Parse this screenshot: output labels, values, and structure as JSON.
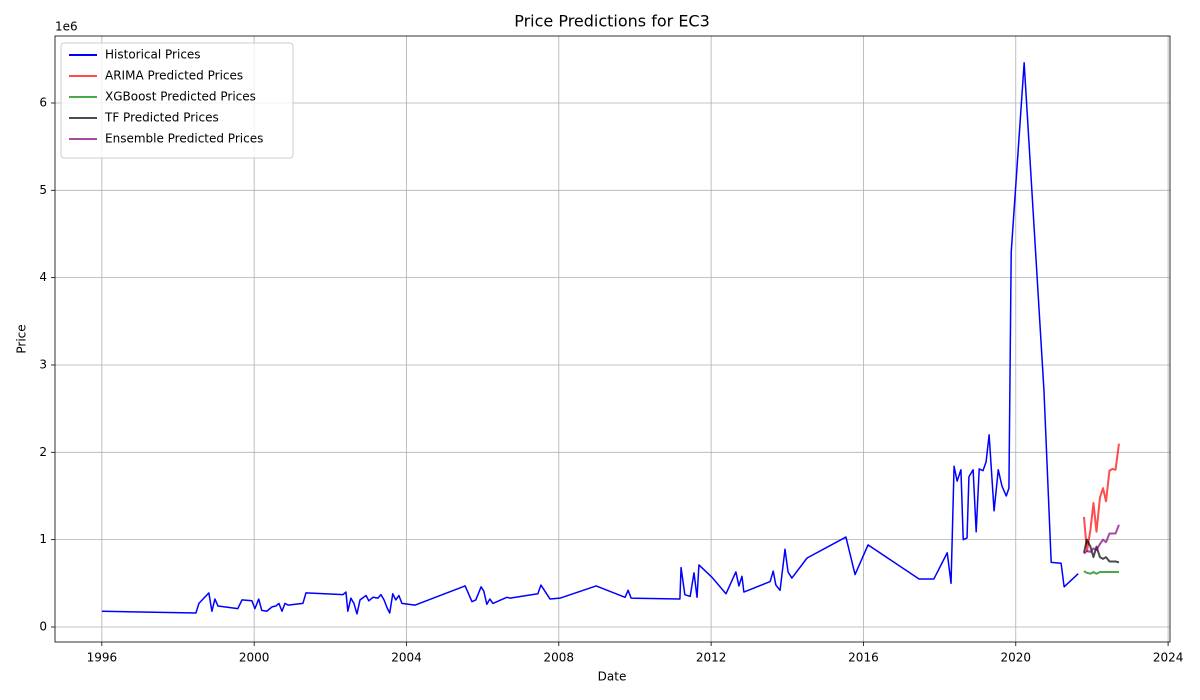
{
  "chart_data": {
    "type": "line",
    "title": "Price Predictions for EC3",
    "xlabel": "Date",
    "ylabel": "Price",
    "y_offset_label": "1e6",
    "xlim": [
      1994.77,
      2024.05
    ],
    "ylim": [
      -0.172,
      6.767
    ],
    "xticks": [
      1996,
      2000,
      2004,
      2008,
      2012,
      2016,
      2020,
      2024
    ],
    "yticks": [
      0,
      1,
      2,
      3,
      4,
      5,
      6
    ],
    "grid": true,
    "legend": "upper left",
    "series": [
      {
        "name": "Historical Prices",
        "color": "#0000ff",
        "opacity": 1,
        "x": [
          1996.0,
          1998.47,
          1998.55,
          1998.81,
          1998.89,
          1998.97,
          1999.05,
          1999.57,
          1999.68,
          1999.94,
          2000.02,
          2000.12,
          2000.2,
          2000.33,
          2000.47,
          2000.57,
          2000.65,
          2000.73,
          2000.81,
          2000.89,
          2001.28,
          2001.36,
          2002.33,
          2002.41,
          2002.46,
          2002.54,
          2002.62,
          2002.7,
          2002.78,
          2002.94,
          2003.01,
          2003.12,
          2003.25,
          2003.33,
          2003.41,
          2003.49,
          2003.56,
          2003.64,
          2003.72,
          2003.8,
          2003.88,
          2004.22,
          2005.54,
          2005.64,
          2005.72,
          2005.82,
          2005.96,
          2006.03,
          2006.11,
          2006.19,
          2006.27,
          2006.53,
          2006.64,
          2006.72,
          2007.45,
          2007.53,
          2007.77,
          2008.03,
          2008.98,
          2009.74,
          2009.82,
          2009.9,
          2011.18,
          2011.21,
          2011.31,
          2011.45,
          2011.55,
          2011.63,
          2011.68,
          2012.02,
          2012.39,
          2012.65,
          2012.73,
          2012.81,
          2012.86,
          2013.55,
          2013.63,
          2013.7,
          2013.81,
          2013.94,
          2014.02,
          2014.12,
          2014.52,
          2015.54,
          2015.78,
          2016.12,
          2017.46,
          2017.85,
          2018.2,
          2018.3,
          2018.38,
          2018.46,
          2018.56,
          2018.62,
          2018.72,
          2018.77,
          2018.88,
          2018.96,
          2019.04,
          2019.14,
          2019.22,
          2019.3,
          2019.43,
          2019.54,
          2019.64,
          2019.75,
          2019.82,
          2019.88,
          2020.22,
          2020.74,
          2020.93,
          2021.19,
          2021.27,
          2021.64
        ],
        "values": [
          0.18,
          0.16,
          0.27,
          0.39,
          0.18,
          0.32,
          0.24,
          0.21,
          0.31,
          0.3,
          0.21,
          0.32,
          0.19,
          0.18,
          0.23,
          0.24,
          0.27,
          0.18,
          0.27,
          0.25,
          0.27,
          0.39,
          0.37,
          0.4,
          0.18,
          0.33,
          0.27,
          0.15,
          0.31,
          0.36,
          0.3,
          0.34,
          0.33,
          0.37,
          0.31,
          0.22,
          0.16,
          0.38,
          0.31,
          0.36,
          0.27,
          0.25,
          0.47,
          0.37,
          0.29,
          0.31,
          0.46,
          0.41,
          0.26,
          0.32,
          0.27,
          0.32,
          0.34,
          0.33,
          0.38,
          0.48,
          0.32,
          0.33,
          0.47,
          0.34,
          0.42,
          0.33,
          0.32,
          0.68,
          0.37,
          0.35,
          0.62,
          0.34,
          0.71,
          0.57,
          0.38,
          0.63,
          0.47,
          0.58,
          0.4,
          0.52,
          0.64,
          0.48,
          0.42,
          0.89,
          0.63,
          0.56,
          0.79,
          1.03,
          0.6,
          0.94,
          0.55,
          0.55,
          0.85,
          0.5,
          1.84,
          1.67,
          1.8,
          1.0,
          1.02,
          1.72,
          1.8,
          1.09,
          1.81,
          1.79,
          1.89,
          2.2,
          1.33,
          1.8,
          1.61,
          1.5,
          1.59,
          4.29,
          6.46,
          2.71,
          0.74,
          0.73,
          0.46,
          0.61
        ]
      },
      {
        "name": "ARIMA Predicted Prices",
        "color": "#ff0000",
        "opacity": 0.7,
        "x": [
          2021.79,
          2021.87,
          2021.96,
          2022.04,
          2022.12,
          2022.21,
          2022.29,
          2022.37,
          2022.46,
          2022.54,
          2022.62,
          2022.71
        ],
        "values": [
          1.26,
          0.87,
          1.11,
          1.42,
          1.09,
          1.48,
          1.59,
          1.44,
          1.79,
          1.81,
          1.8,
          2.1
        ]
      },
      {
        "name": "XGBoost Predicted Prices",
        "color": "#008000",
        "opacity": 0.7,
        "x": [
          2021.79,
          2021.87,
          2021.96,
          2022.04,
          2022.12,
          2022.21,
          2022.29,
          2022.37,
          2022.46,
          2022.54,
          2022.62,
          2022.71
        ],
        "values": [
          0.64,
          0.62,
          0.61,
          0.63,
          0.61,
          0.63,
          0.63,
          0.63,
          0.63,
          0.63,
          0.63,
          0.63
        ]
      },
      {
        "name": "TF Predicted Prices",
        "color": "#000000",
        "opacity": 0.7,
        "x": [
          2021.79,
          2021.87,
          2021.96,
          2022.04,
          2022.12,
          2022.21,
          2022.29,
          2022.37,
          2022.46,
          2022.54,
          2022.62,
          2022.71
        ],
        "values": [
          0.85,
          1.0,
          0.92,
          0.8,
          0.92,
          0.8,
          0.78,
          0.8,
          0.75,
          0.75,
          0.75,
          0.74
        ]
      },
      {
        "name": "Ensemble Predicted Prices",
        "color": "#800080",
        "opacity": 0.7,
        "x": [
          2021.79,
          2021.87,
          2021.96,
          2022.04,
          2022.12,
          2022.21,
          2022.29,
          2022.37,
          2022.46,
          2022.54,
          2022.62,
          2022.71
        ],
        "values": [
          0.84,
          0.87,
          0.86,
          0.9,
          0.88,
          0.95,
          1.0,
          0.97,
          1.07,
          1.07,
          1.07,
          1.17
        ]
      }
    ]
  }
}
